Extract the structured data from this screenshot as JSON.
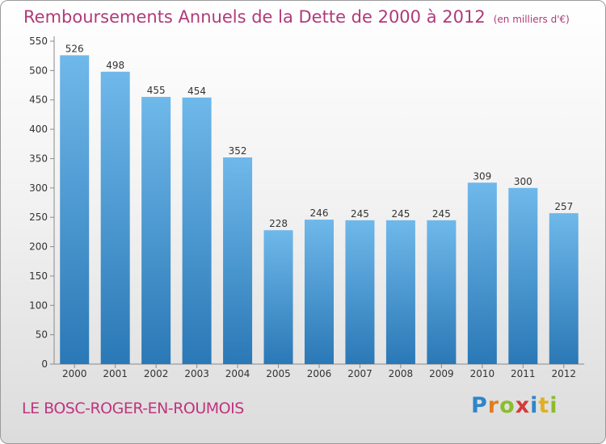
{
  "header": {
    "title": "Remboursements Annuels de la Dette de 2000 à 2012",
    "unit_note": "(en milliers d'€)"
  },
  "footer": {
    "commune": "LE BOSC-ROGER-EN-ROUMOIS",
    "logo": {
      "text": "Proxiti",
      "letters": [
        {
          "ch": "P",
          "color": "#2e86c8"
        },
        {
          "ch": "r",
          "color": "#e07d20"
        },
        {
          "ch": "o",
          "color": "#8bbd2c"
        },
        {
          "ch": "x",
          "color": "#d63a3a"
        },
        {
          "ch": "i",
          "color": "#2e86c8"
        },
        {
          "ch": "t",
          "color": "#e0b020"
        },
        {
          "ch": "i",
          "color": "#8bbd2c"
        }
      ]
    }
  },
  "colors": {
    "bar_top": "#6fb8ea",
    "bar_bottom": "#2a78b6",
    "title": "#b03a7a",
    "axis": "#8a8a8a"
  },
  "chart_data": {
    "type": "bar",
    "categories": [
      "2000",
      "2001",
      "2002",
      "2003",
      "2004",
      "2005",
      "2006",
      "2007",
      "2008",
      "2009",
      "2010",
      "2011",
      "2012"
    ],
    "values": [
      526,
      498,
      455,
      454,
      352,
      228,
      246,
      245,
      245,
      245,
      309,
      300,
      257
    ],
    "data_labels": [
      "526",
      "498",
      "455",
      "454",
      "352",
      "228",
      "246",
      "245",
      "245",
      "245",
      "309",
      "300",
      "257"
    ],
    "ylim": [
      0,
      550
    ],
    "yticks": [
      0,
      50,
      100,
      150,
      200,
      250,
      300,
      350,
      400,
      450,
      500,
      550
    ],
    "grid": false,
    "legend": "none"
  }
}
